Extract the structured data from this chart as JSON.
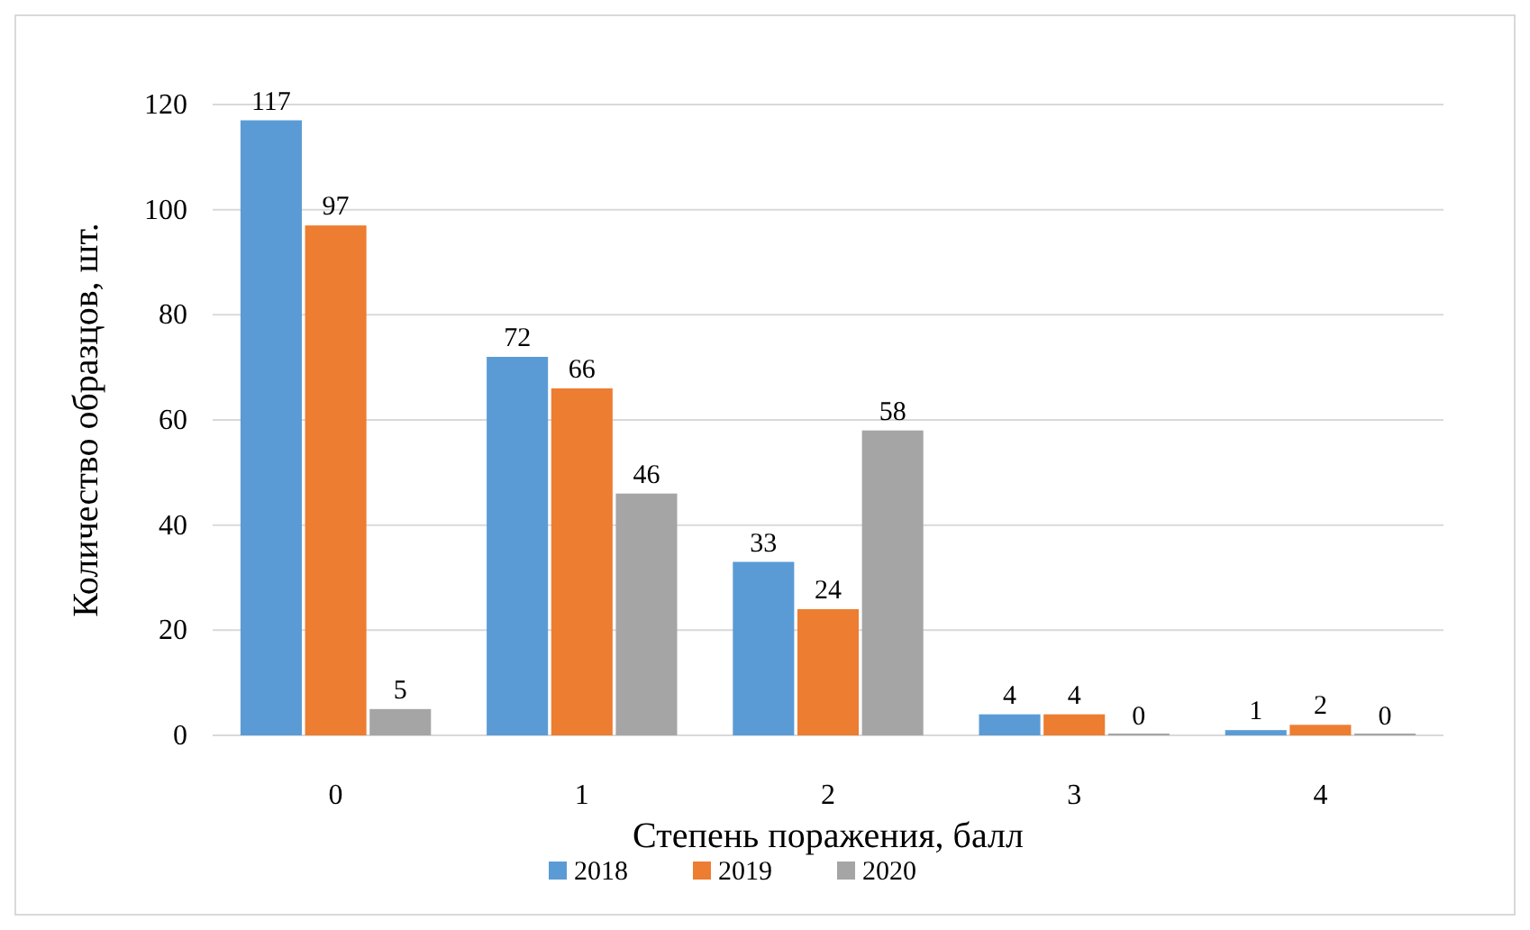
{
  "chart_data": {
    "type": "bar",
    "xlabel": "Степень поражения, балл",
    "ylabel": "Количество образцов, шт.",
    "categories": [
      "0",
      "1",
      "2",
      "3",
      "4"
    ],
    "series": [
      {
        "name": "2018",
        "color": "#5b9bd5",
        "values": [
          117,
          72,
          33,
          4,
          1
        ]
      },
      {
        "name": "2019",
        "color": "#ed7d31",
        "values": [
          97,
          66,
          24,
          4,
          2
        ]
      },
      {
        "name": "2020",
        "color": "#a5a5a5",
        "values": [
          5,
          46,
          58,
          0,
          0
        ]
      }
    ],
    "ylim": [
      0,
      120
    ],
    "yticks": [
      0,
      20,
      40,
      60,
      80,
      100,
      120
    ],
    "grid": "y",
    "legend": "bottom",
    "data_labels": true
  }
}
